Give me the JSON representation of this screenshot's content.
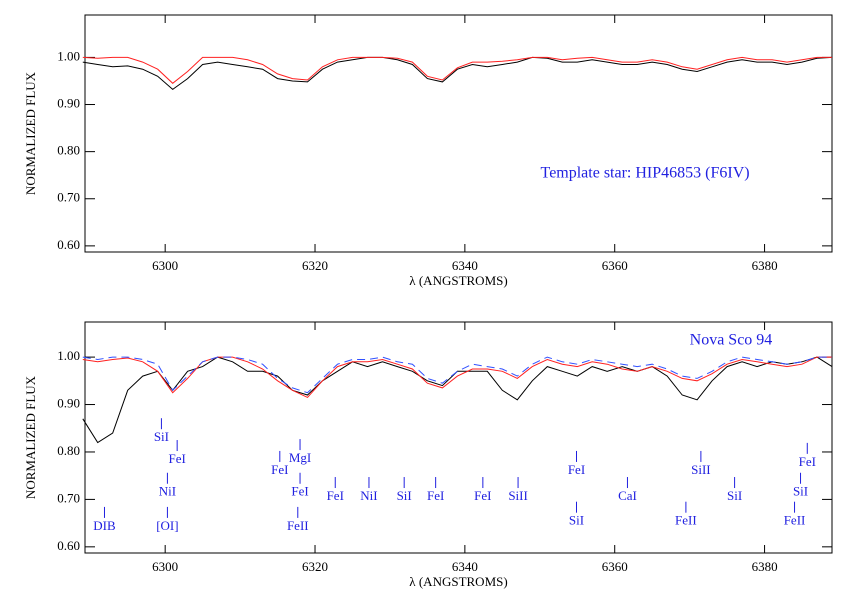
{
  "chart_data": [
    {
      "type": "line",
      "xlabel": "λ (ANGSTROMS)",
      "ylabel": "NORMALIZED FLUX",
      "x": [
        6289,
        6291,
        6293,
        6295,
        6297,
        6299,
        6301,
        6303,
        6305,
        6307,
        6309,
        6311,
        6313,
        6315,
        6317,
        6319,
        6321,
        6323,
        6325,
        6327,
        6329,
        6331,
        6333,
        6335,
        6337,
        6339,
        6341,
        6343,
        6345,
        6347,
        6349,
        6351,
        6353,
        6355,
        6357,
        6359,
        6361,
        6363,
        6365,
        6367,
        6369,
        6371,
        6373,
        6375,
        6377,
        6379,
        6381,
        6383,
        6385,
        6387,
        6389
      ],
      "series": [
        {
          "color": "#000000",
          "style": "solid",
          "values": [
            0.99,
            0.985,
            0.98,
            0.982,
            0.975,
            0.96,
            0.932,
            0.955,
            0.985,
            0.99,
            0.985,
            0.98,
            0.975,
            0.955,
            0.95,
            0.948,
            0.975,
            0.99,
            0.995,
            1.0,
            1.0,
            0.995,
            0.985,
            0.955,
            0.948,
            0.975,
            0.985,
            0.98,
            0.985,
            0.99,
            1.0,
            0.998,
            0.99,
            0.99,
            0.995,
            0.99,
            0.985,
            0.985,
            0.99,
            0.985,
            0.975,
            0.97,
            0.98,
            0.99,
            0.995,
            0.99,
            0.99,
            0.985,
            0.99,
            0.998,
            1.0
          ]
        },
        {
          "color": "#ff2020",
          "style": "solid",
          "values": [
            1.0,
            0.998,
            1.0,
            1.0,
            0.99,
            0.975,
            0.945,
            0.97,
            1.0,
            1.0,
            1.0,
            0.995,
            0.985,
            0.965,
            0.955,
            0.952,
            0.98,
            0.995,
            1.0,
            1.0,
            1.0,
            0.998,
            0.99,
            0.96,
            0.952,
            0.978,
            0.99,
            0.99,
            0.992,
            0.995,
            1.0,
            1.0,
            0.995,
            0.998,
            1.0,
            0.995,
            0.99,
            0.99,
            0.995,
            0.99,
            0.98,
            0.975,
            0.985,
            0.995,
            1.0,
            0.995,
            0.995,
            0.99,
            0.995,
            1.0,
            1.0
          ]
        }
      ],
      "xlim": [
        6289.3,
        6389
      ],
      "ylim": [
        0.587,
        1.09
      ],
      "xticks": [
        6300,
        6320,
        6340,
        6360,
        6380
      ],
      "yticks": [
        {
          "value": 0.6,
          "label": "0.60"
        },
        {
          "value": 0.7,
          "label": "0.70"
        },
        {
          "value": 0.8,
          "label": "0.80"
        },
        {
          "value": 0.9,
          "label": "0.90"
        },
        {
          "value": 1.0,
          "label": "1.00"
        }
      ],
      "note": {
        "text": "Template star:  HIP46853 (F6IV)",
        "x": 6350.1,
        "y": 0.753
      },
      "annotations": []
    },
    {
      "type": "line",
      "xlabel": "λ (ANGSTROMS)",
      "ylabel": "NORMALIZED FLUX",
      "x": [
        6289,
        6291,
        6293,
        6295,
        6297,
        6299,
        6301,
        6303,
        6305,
        6307,
        6309,
        6311,
        6313,
        6315,
        6317,
        6319,
        6321,
        6323,
        6325,
        6327,
        6329,
        6331,
        6333,
        6335,
        6337,
        6339,
        6341,
        6343,
        6345,
        6347,
        6349,
        6351,
        6353,
        6355,
        6357,
        6359,
        6361,
        6363,
        6365,
        6367,
        6369,
        6371,
        6373,
        6375,
        6377,
        6379,
        6381,
        6383,
        6385,
        6387,
        6389
      ],
      "series": [
        {
          "color": "#000000",
          "style": "solid",
          "values": [
            0.87,
            0.82,
            0.84,
            0.93,
            0.96,
            0.97,
            0.93,
            0.97,
            0.98,
            1.0,
            0.99,
            0.97,
            0.97,
            0.96,
            0.93,
            0.92,
            0.95,
            0.97,
            0.99,
            0.98,
            0.99,
            0.98,
            0.97,
            0.95,
            0.94,
            0.97,
            0.97,
            0.97,
            0.93,
            0.91,
            0.95,
            0.98,
            0.97,
            0.96,
            0.98,
            0.97,
            0.98,
            0.97,
            0.98,
            0.96,
            0.92,
            0.91,
            0.95,
            0.98,
            0.99,
            0.98,
            0.99,
            0.985,
            0.99,
            1.0,
            0.98
          ]
        },
        {
          "color": "#ff2020",
          "style": "solid",
          "values": [
            0.995,
            0.99,
            0.995,
            0.998,
            0.99,
            0.97,
            0.925,
            0.955,
            0.99,
            1.0,
            1.0,
            0.99,
            0.975,
            0.95,
            0.93,
            0.915,
            0.95,
            0.98,
            0.99,
            0.99,
            0.995,
            0.985,
            0.975,
            0.945,
            0.935,
            0.96,
            0.975,
            0.975,
            0.97,
            0.955,
            0.98,
            0.995,
            0.985,
            0.98,
            0.99,
            0.985,
            0.975,
            0.97,
            0.98,
            0.97,
            0.955,
            0.95,
            0.965,
            0.985,
            0.995,
            0.99,
            0.985,
            0.98,
            0.985,
            1.0,
            1.0
          ]
        },
        {
          "color": "#3050ff",
          "style": "dashed",
          "values": [
            1.0,
            0.995,
            1.0,
            1.0,
            0.995,
            0.985,
            0.93,
            0.96,
            0.99,
            1.0,
            1.0,
            0.995,
            0.985,
            0.955,
            0.935,
            0.925,
            0.955,
            0.985,
            0.995,
            0.995,
            1.0,
            0.99,
            0.985,
            0.955,
            0.945,
            0.97,
            0.985,
            0.98,
            0.975,
            0.96,
            0.985,
            1.0,
            0.99,
            0.985,
            0.995,
            0.99,
            0.985,
            0.98,
            0.985,
            0.975,
            0.96,
            0.955,
            0.97,
            0.99,
            1.0,
            0.995,
            0.99,
            0.985,
            0.99,
            1.0,
            1.0
          ]
        }
      ],
      "xlim": [
        6289.3,
        6389
      ],
      "ylim": [
        0.587,
        1.074
      ],
      "xticks": [
        6300,
        6320,
        6340,
        6360,
        6380
      ],
      "yticks": [
        {
          "value": 0.6,
          "label": "0.60"
        },
        {
          "value": 0.7,
          "label": "0.70"
        },
        {
          "value": 0.8,
          "label": "0.80"
        },
        {
          "value": 0.9,
          "label": "0.90"
        },
        {
          "value": 1.0,
          "label": "1.00"
        }
      ],
      "note": {
        "text": "Nova Sco 94",
        "x": 6370,
        "y": 1.034
      },
      "annotations": [
        {
          "text": "DIB",
          "x": 6291.9,
          "y": 0.642
        },
        {
          "text": "SiI",
          "x": 6299.5,
          "y": 0.829
        },
        {
          "text": "FeI",
          "x": 6301.6,
          "y": 0.783
        },
        {
          "text": "NiI",
          "x": 6300.3,
          "y": 0.714
        },
        {
          "text": "[OI]",
          "x": 6300.3,
          "y": 0.642
        },
        {
          "text": "FeI",
          "x": 6315.3,
          "y": 0.76
        },
        {
          "text": "MgI",
          "x": 6318.0,
          "y": 0.785
        },
        {
          "text": "FeI",
          "x": 6318.0,
          "y": 0.714
        },
        {
          "text": "FeII",
          "x": 6317.7,
          "y": 0.642
        },
        {
          "text": "FeI",
          "x": 6322.7,
          "y": 0.705
        },
        {
          "text": "NiI",
          "x": 6327.2,
          "y": 0.705
        },
        {
          "text": "SiI",
          "x": 6331.9,
          "y": 0.705
        },
        {
          "text": "FeI",
          "x": 6336.1,
          "y": 0.705
        },
        {
          "text": "FeI",
          "x": 6342.4,
          "y": 0.705
        },
        {
          "text": "SiII",
          "x": 6347.1,
          "y": 0.705
        },
        {
          "text": "FeI",
          "x": 6354.9,
          "y": 0.76
        },
        {
          "text": "SiI",
          "x": 6354.9,
          "y": 0.653
        },
        {
          "text": "CaI",
          "x": 6361.7,
          "y": 0.705
        },
        {
          "text": "FeII",
          "x": 6369.5,
          "y": 0.653
        },
        {
          "text": "SiII",
          "x": 6371.5,
          "y": 0.76
        },
        {
          "text": "SiI",
          "x": 6376.0,
          "y": 0.705
        },
        {
          "text": "FeI",
          "x": 6385.7,
          "y": 0.777
        },
        {
          "text": "SiI",
          "x": 6384.8,
          "y": 0.714
        },
        {
          "text": "FeII",
          "x": 6384.0,
          "y": 0.653
        }
      ]
    }
  ]
}
